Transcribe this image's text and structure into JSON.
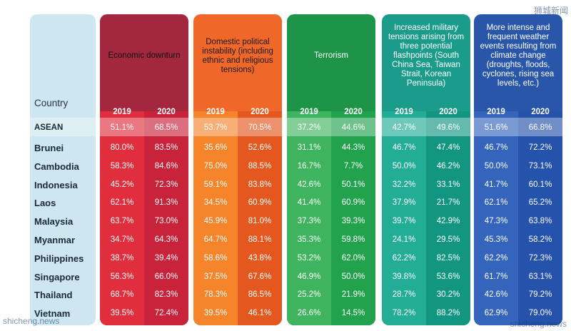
{
  "chart_data": {
    "type": "table",
    "header_label": "Country",
    "years": [
      "2019",
      "2020"
    ],
    "categories": [
      {
        "name": "Economic downturn",
        "colors": {
          "head": "#a3273f",
          "left": "#e02e3c",
          "right": "#c8233b"
        },
        "text_color": "#111111"
      },
      {
        "name": "Domestic political instability (including ethnic and religious tensions)",
        "colors": {
          "head": "#f0672a",
          "left": "#f5842b",
          "right": "#e4571e"
        },
        "text_color": "#1a1a1a"
      },
      {
        "name": "Terrorism",
        "colors": {
          "head": "#1d9448",
          "left": "#3fb45f",
          "right": "#23a24d"
        },
        "text_color": "#ffffff"
      },
      {
        "name": "Increased military tensions arising from three potential flashpoints (South China Sea, Taiwan Strait, Korean Peninsula)",
        "colors": {
          "head": "#1b9c8a",
          "left": "#21ad96",
          "right": "#129682"
        },
        "text_color": "#ffffff"
      },
      {
        "name": "More intense and frequent weather events resulting from climate change (droughts, floods, cyclones, rising sea levels, etc.)",
        "colors": {
          "head": "#2a56a9",
          "left": "#3464bc",
          "right": "#2552ab"
        },
        "text_color": "#ffffff"
      }
    ],
    "rows": [
      {
        "country": "ASEAN",
        "values": [
          "51.1%",
          "68.5%",
          "53.7%",
          "70.5%",
          "37.2%",
          "44.6%",
          "42.7%",
          "49.6%",
          "51.6%",
          "66.8%"
        ]
      },
      {
        "country": "Brunei",
        "values": [
          "80.0%",
          "83.5%",
          "35.6%",
          "52.6%",
          "31.1%",
          "44.3%",
          "46.7%",
          "47.4%",
          "46.7%",
          "72.2%"
        ]
      },
      {
        "country": "Cambodia",
        "values": [
          "58.3%",
          "84.6%",
          "75.0%",
          "88.5%",
          "16.7%",
          "7.7%",
          "50.0%",
          "46.2%",
          "50.0%",
          "73.1%"
        ]
      },
      {
        "country": "Indonesia",
        "values": [
          "45.2%",
          "72.3%",
          "59.1%",
          "83.8%",
          "42.6%",
          "50.1%",
          "32.2%",
          "33.1%",
          "41.7%",
          "60.1%"
        ]
      },
      {
        "country": "Laos",
        "values": [
          "62.1%",
          "91.3%",
          "34.5%",
          "60.9%",
          "41.4%",
          "60.9%",
          "37.9%",
          "21.7%",
          "62.1%",
          "65.2%"
        ]
      },
      {
        "country": "Malaysia",
        "values": [
          "63.7%",
          "73.0%",
          "45.9%",
          "81.0%",
          "37.3%",
          "39.3%",
          "39.7%",
          "42.9%",
          "47.3%",
          "63.8%"
        ]
      },
      {
        "country": "Myanmar",
        "values": [
          "34.7%",
          "64.3%",
          "64.7%",
          "88.1%",
          "35.3%",
          "59.8%",
          "24.1%",
          "29.5%",
          "45.3%",
          "58.2%"
        ]
      },
      {
        "country": "Philippines",
        "values": [
          "38.7%",
          "39.4%",
          "58.6%",
          "43.8%",
          "53.2%",
          "62.0%",
          "62.2%",
          "82.5%",
          "62.2%",
          "72.3%"
        ]
      },
      {
        "country": "Singapore",
        "values": [
          "56.3%",
          "66.0%",
          "37.5%",
          "67.6%",
          "46.9%",
          "50.0%",
          "39.8%",
          "53.6%",
          "61.7%",
          "63.1%"
        ]
      },
      {
        "country": "Thailand",
        "values": [
          "68.7%",
          "82.3%",
          "78.3%",
          "86.5%",
          "25.2%",
          "21.9%",
          "28.7%",
          "30.2%",
          "42.6%",
          "79.2%"
        ]
      },
      {
        "country": "Vietnam",
        "values": [
          "39.5%",
          "72.4%",
          "39.5%",
          "46.1%",
          "26.6%",
          "14.5%",
          "78.2%",
          "88.2%",
          "62.9%",
          "79.0%"
        ]
      }
    ]
  },
  "watermarks": {
    "top_right": "狮城新闻",
    "bottom_left": "shicheng.news",
    "bottom_right": "shicheng.news"
  }
}
